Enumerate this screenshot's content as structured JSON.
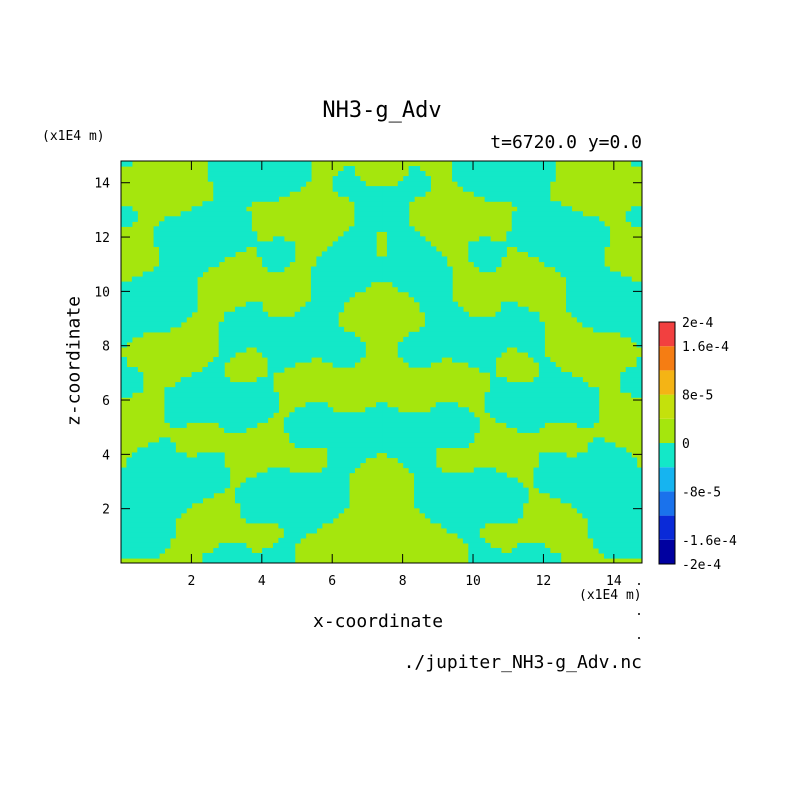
{
  "chart_data": {
    "type": "heatmap",
    "title": "NH3-g_Adv",
    "subtitle": "t=6720.0 y=0.0",
    "xlabel": "x-coordinate",
    "ylabel": "z-coordinate",
    "x_unit": "(x1E4 m)",
    "y_unit": "(x1E4 m)",
    "source": "./jupiter_NH3-g_Adv.nc",
    "xlim": [
      0,
      14.8
    ],
    "ylim": [
      0,
      14.8
    ],
    "x_ticks": [
      "2",
      "4",
      "6",
      "8",
      "10",
      "12",
      "14"
    ],
    "y_ticks": [
      "2",
      "4",
      "6",
      "8",
      "10",
      "12",
      "14"
    ],
    "colorbar": {
      "range": [
        -0.0002,
        0.0002
      ],
      "labels": [
        "2e-4",
        "1.6e-4",
        "8e-5",
        "0",
        "-8e-5",
        "-1.6e-4",
        "-2e-4"
      ],
      "label_values": [
        0.0002,
        0.00016,
        8e-05,
        0,
        -8e-05,
        -0.00016,
        -0.0002
      ],
      "levels": [
        {
          "from": -0.0002,
          "to": -0.00016,
          "color": "#0000a0"
        },
        {
          "from": -0.00016,
          "to": -0.00012,
          "color": "#0a2ad8"
        },
        {
          "from": -0.00012,
          "to": -8e-05,
          "color": "#1a72ec"
        },
        {
          "from": -8e-05,
          "to": -4e-05,
          "color": "#16b4f0"
        },
        {
          "from": -4e-05,
          "to": 0,
          "color": "#13e8c8"
        },
        {
          "from": 0,
          "to": 4e-05,
          "color": "#a5e60d"
        },
        {
          "from": 4e-05,
          "to": 8e-05,
          "color": "#c4e10c"
        },
        {
          "from": 8e-05,
          "to": 0.00012,
          "color": "#f4b415"
        },
        {
          "from": 0.00012,
          "to": 0.00016,
          "color": "#f57d13"
        },
        {
          "from": 0.00016,
          "to": 0.0002,
          "color": "#f24040"
        }
      ]
    },
    "dominant_colors": {
      "negative": "#13e8c8",
      "positive": "#a5e60d"
    }
  }
}
